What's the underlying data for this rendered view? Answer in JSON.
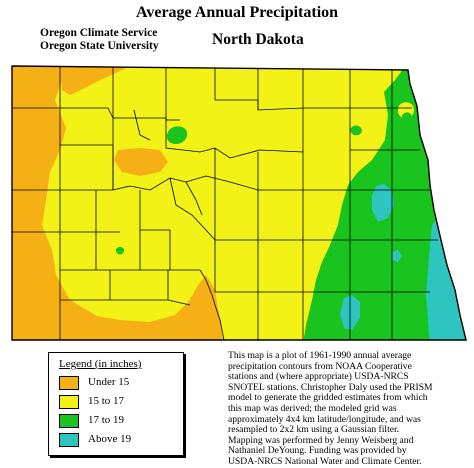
{
  "title": "Average Annual Precipitation",
  "organization": [
    "Oregon Climate Service",
    "Oregon State University"
  ],
  "state_name": "North Dakota",
  "colors": {
    "under_15": "#f5b015",
    "15_to_17": "#f2f217",
    "17_to_19": "#18c41d",
    "above_19": "#2ec4c0"
  },
  "legend": {
    "title": "Legend (in inches)",
    "items": [
      {
        "label": "Under 15",
        "color": "#f5b015"
      },
      {
        "label": "15 to 17",
        "color": "#f2f217"
      },
      {
        "label": "17 to 19",
        "color": "#18c41d"
      },
      {
        "label": "Above 19",
        "color": "#2ec4c0"
      }
    ]
  },
  "note_lines": [
    "This map is a plot of 1961-1990 annual average",
    "precipitation contours from NOAA Cooperative",
    "stations and (where appropriate) USDA-NRCS",
    "SNOTEL stations. Christopher Daly used the PRISM",
    "model to generate the gridded estimates from which",
    "this map was derived; the modeled grid was",
    "approximately 4x4 km latitude/longitude, and was",
    "resampled to 2x2 km using a Gaussian filter.",
    "Mapping was performed by Jenny Weisberg and",
    "Nathaniel DeYoung. Funding was provided by",
    "USDA-NRCS National Water and Climate Center."
  ]
}
